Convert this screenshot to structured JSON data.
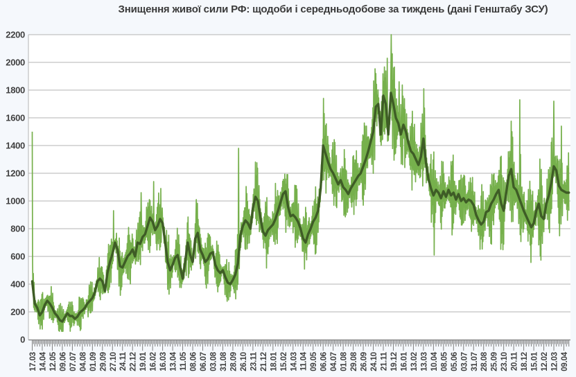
{
  "chart_data": {
    "type": "line",
    "title": "Знищення живої сили РФ: щодоби і середньодобове за тиждень (дані Генштабу ЗСУ)",
    "xlabel": "",
    "ylabel": "",
    "ylim": [
      0,
      2200
    ],
    "y_tick_step": 200,
    "y_tick_labels": [
      "0",
      "200",
      "400",
      "600",
      "800",
      "1000",
      "1200",
      "1400",
      "1600",
      "1800",
      "2000",
      "2200"
    ],
    "grid": "horizontal",
    "legend": "none",
    "x_tick_label_interval_days": 28,
    "x_minor_tick_interval_days": 7,
    "x_tick_labels": [
      "17.03",
      "14.04",
      "12.05",
      "09.06",
      "07.07",
      "04.08",
      "01.09",
      "29.09",
      "27.10",
      "24.11",
      "22.12",
      "19.01",
      "16.02",
      "16.03",
      "13.04",
      "11.05",
      "08.06",
      "06.07",
      "03.08",
      "31.08",
      "28.09",
      "26.10",
      "23.11",
      "21.12",
      "18.01",
      "15.02",
      "14.03",
      "11.04",
      "09.05",
      "06.06",
      "04.07",
      "01.08",
      "29.08",
      "26.09",
      "24.10",
      "21.11",
      "19.12",
      "16.01",
      "13.02",
      "13.03",
      "10.04",
      "08.05",
      "05.06",
      "03.07",
      "31.07",
      "28.08",
      "25.09",
      "23.10",
      "20.11",
      "18.12",
      "15.01",
      "12.02",
      "12.03",
      "09.04"
    ],
    "style": {
      "page_bg": "#f5f8fc",
      "plot_bg": "#ffffff",
      "grid_color": "#b3b3b3",
      "axis_color": "#7f7f7f",
      "tick_label_color": "#404040",
      "title_color": "#3a3a3a"
    },
    "series": [
      {
        "name": "щодоби",
        "role": "daily-values",
        "color": "#76b04c",
        "stroke_width": 1.7,
        "weekly_spread_at_labels": [
          150,
          130,
          130,
          110,
          110,
          120,
          140,
          160,
          200,
          200,
          200,
          220,
          230,
          230,
          180,
          180,
          200,
          200,
          180,
          170,
          170,
          240,
          240,
          220,
          220,
          240,
          220,
          210,
          260,
          280,
          260,
          240,
          240,
          260,
          300,
          320,
          330,
          300,
          280,
          300,
          280,
          260,
          250,
          240,
          240,
          250,
          280,
          320,
          320,
          300,
          300,
          330,
          320,
          300
        ],
        "spikes": [
          {
            "week": 0,
            "day": 0,
            "value": 1500
          },
          {
            "week": 32,
            "day": 3,
            "value": 930
          },
          {
            "week": 43,
            "day": 3,
            "value": 1060
          },
          {
            "week": 48,
            "day": 3,
            "value": 1140
          },
          {
            "week": 51,
            "day": 2,
            "value": 1090
          },
          {
            "week": 65,
            "day": 3,
            "value": 1010
          },
          {
            "week": 82,
            "day": 2,
            "value": 1380
          },
          {
            "week": 116,
            "day": 1,
            "value": 1740
          },
          {
            "week": 141,
            "day": 4,
            "value": 2030
          },
          {
            "week": 143,
            "day": 1,
            "value": 2200
          },
          {
            "week": 146,
            "day": 2,
            "value": 1860
          },
          {
            "week": 156,
            "day": 1,
            "value": 1810
          },
          {
            "week": 160,
            "day": 2,
            "value": 610
          },
          {
            "week": 191,
            "day": 2,
            "value": 1500
          },
          {
            "week": 194,
            "day": 3,
            "value": 1730
          },
          {
            "week": 208,
            "day": 0,
            "value": 1720
          },
          {
            "week": 211,
            "day": 0,
            "value": 1540
          }
        ]
      },
      {
        "name": "середньодобове за тиждень",
        "role": "weekly-average",
        "color": "#3e5c26",
        "stroke_width": 3.4,
        "weekly_values": [
          420,
          260,
          230,
          175,
          200,
          250,
          280,
          260,
          230,
          190,
          170,
          140,
          130,
          160,
          190,
          170,
          170,
          150,
          165,
          195,
          210,
          230,
          260,
          280,
          300,
          340,
          420,
          440,
          420,
          350,
          480,
          560,
          620,
          700,
          650,
          530,
          520,
          560,
          600,
          620,
          650,
          600,
          700,
          690,
          740,
          760,
          820,
          880,
          850,
          790,
          820,
          870,
          840,
          700,
          560,
          500,
          540,
          590,
          610,
          520,
          440,
          560,
          700,
          610,
          560,
          730,
          770,
          650,
          610,
          560,
          580,
          620,
          630,
          540,
          500,
          480,
          500,
          450,
          410,
          400,
          430,
          470,
          550,
          750,
          820,
          860,
          840,
          800,
          950,
          1030,
          1000,
          880,
          780,
          750,
          790,
          810,
          830,
          870,
          930,
          990,
          1050,
          1070,
          960,
          890,
          900,
          880,
          850,
          800,
          730,
          700,
          760,
          800,
          850,
          880,
          930,
          1090,
          1400,
          1340,
          1280,
          1230,
          1200,
          1160,
          1120,
          1150,
          1100,
          1080,
          1050,
          1090,
          1120,
          1150,
          1180,
          1200,
          1250,
          1300,
          1360,
          1430,
          1500,
          1680,
          1700,
          1480,
          1760,
          1700,
          1480,
          1780,
          1700,
          1600,
          1560,
          1480,
          1550,
          1500,
          1420,
          1360,
          1340,
          1300,
          1260,
          1320,
          1450,
          1280,
          1160,
          1090,
          1040,
          1080,
          1060,
          1020,
          1070,
          1030,
          1080,
          1040,
          1060,
          1010,
          1050,
          1000,
          1020,
          990,
          1010,
          1000,
          970,
          900,
          860,
          830,
          850,
          920,
          930,
          980,
          1010,
          1050,
          1080,
          980,
          930,
          1060,
          1180,
          1230,
          1100,
          1080,
          1030,
          980,
          930,
          890,
          850,
          810,
          840,
          930,
          980,
          890,
          870,
          980,
          1040,
          1130,
          1250,
          1220,
          1110,
          1080,
          1070,
          1060,
          1060
        ]
      }
    ]
  }
}
